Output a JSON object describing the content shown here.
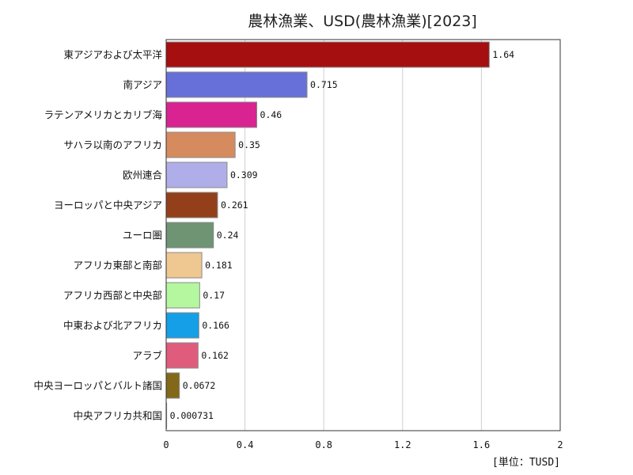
{
  "chart_data": {
    "type": "bar",
    "orientation": "horizontal",
    "title": "農林漁業、USD(農林漁業)[2023]",
    "unit_label": "[単位：TUSD]",
    "xlim": [
      0,
      2
    ],
    "xticks": [
      "0",
      "0.4",
      "0.8",
      "1.2",
      "1.6",
      "2"
    ],
    "xtick_values": [
      0,
      0.4,
      0.8,
      1.2,
      1.6,
      2
    ],
    "grid": "vertical",
    "categories": [
      "東アジアおよび太平洋",
      "南アジア",
      "ラテンアメリカとカリブ海",
      "サハラ以南のアフリカ",
      "欧州連合",
      "ヨーロッパと中央アジア",
      "ユーロ圏",
      "アフリカ東部と南部",
      "アフリカ西部と中央部",
      "中東および北アフリカ",
      "アラブ",
      "中央ヨーロッパとバルト諸国",
      "中央アフリカ共和国"
    ],
    "values": [
      1.64,
      0.715,
      0.46,
      0.35,
      0.309,
      0.261,
      0.24,
      0.181,
      0.17,
      0.166,
      0.162,
      0.0672,
      0.000731
    ],
    "value_labels": [
      "1.64",
      "0.715",
      "0.46",
      "0.35",
      "0.309",
      "0.261",
      "0.24",
      "0.181",
      "0.17",
      "0.166",
      "0.162",
      "0.0672",
      "0.000731"
    ],
    "colors": [
      "#a50f0f",
      "#6670d8",
      "#d82391",
      "#d68b5e",
      "#b0aee8",
      "#93401a",
      "#6e9473",
      "#efc791",
      "#b4f79f",
      "#149fe6",
      "#e05c7c",
      "#83681a",
      "#2a2a8c"
    ]
  }
}
